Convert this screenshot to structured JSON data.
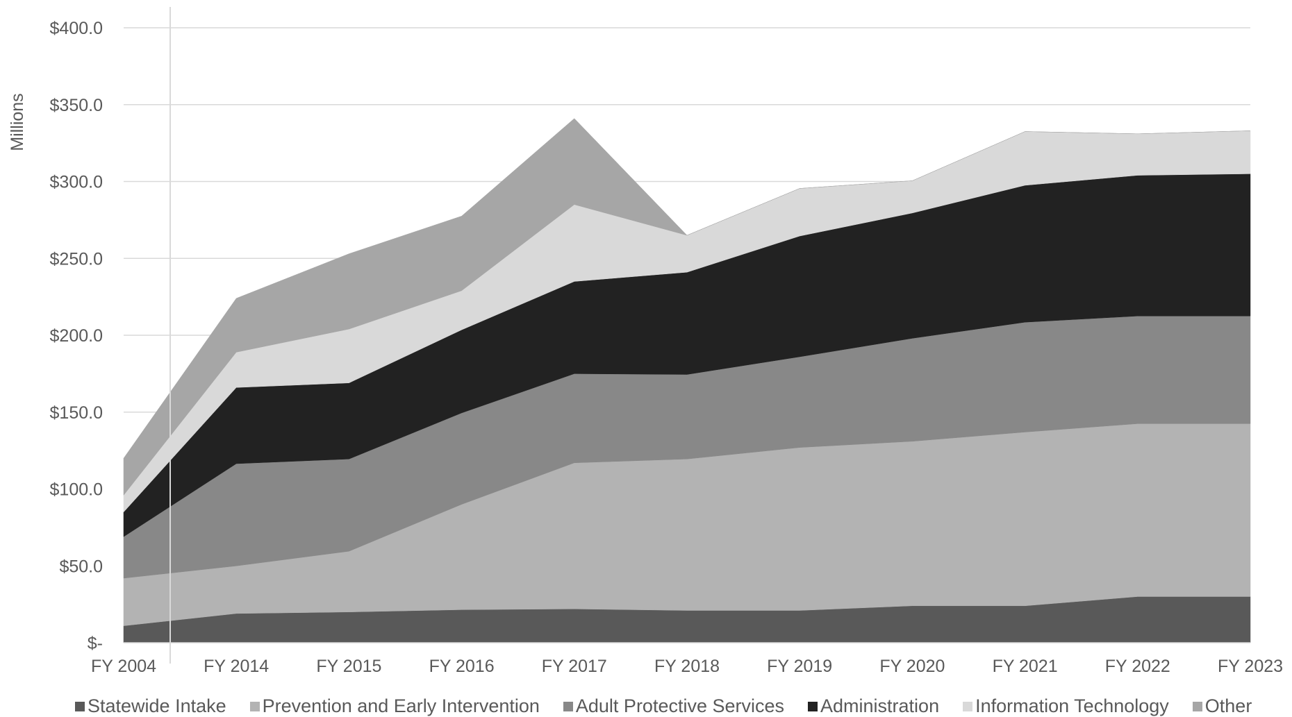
{
  "chart_data": {
    "type": "area",
    "stacked": true,
    "ylabel": "Millions",
    "categories": [
      "FY 2004",
      "FY 2014",
      "FY 2015",
      "FY 2016",
      "FY 2017",
      "FY 2018",
      "FY 2019",
      "FY 2020",
      "FY 2021",
      "FY 2022",
      "FY 2023"
    ],
    "ylim": [
      0,
      400
    ],
    "yticks": [
      {
        "value": 0,
        "label": "$-"
      },
      {
        "value": 50,
        "label": "$50.0"
      },
      {
        "value": 100,
        "label": "$100.0"
      },
      {
        "value": 150,
        "label": "$150.0"
      },
      {
        "value": 200,
        "label": "$200.0"
      },
      {
        "value": 250,
        "label": "$250.0"
      },
      {
        "value": 300,
        "label": "$300.0"
      },
      {
        "value": 350,
        "label": "$350.0"
      },
      {
        "value": 400,
        "label": "$400.0"
      }
    ],
    "grid": true,
    "legend_position": "bottom",
    "series": [
      {
        "name": "Statewide Intake",
        "color": "#595959",
        "values": [
          11,
          19,
          20,
          21.5,
          22,
          21,
          21,
          24,
          24,
          30,
          30
        ]
      },
      {
        "name": "Prevention and Early Intervention",
        "color": "#b3b3b3",
        "values": [
          31,
          31,
          39.5,
          68.5,
          95,
          98.5,
          106,
          107,
          113,
          112.5,
          112.5
        ]
      },
      {
        "name": "Adult Protective Services",
        "color": "#888888",
        "values": [
          27,
          66.5,
          60,
          59.5,
          58,
          55,
          59,
          67,
          71.5,
          70,
          70
        ]
      },
      {
        "name": "Administration",
        "color": "#222222",
        "values": [
          16,
          49.5,
          49.5,
          54,
          60,
          66.5,
          78.5,
          81.5,
          89,
          91.5,
          92.5
        ]
      },
      {
        "name": "Information Technology",
        "color": "#d9d9d9",
        "values": [
          11,
          23,
          35,
          25.5,
          50,
          24,
          31,
          21,
          35,
          27,
          28
        ]
      },
      {
        "name": "Other",
        "color": "#a6a6a6",
        "values": [
          24,
          35,
          49,
          48.5,
          56,
          0,
          0,
          0,
          0,
          0,
          0
        ]
      }
    ]
  }
}
